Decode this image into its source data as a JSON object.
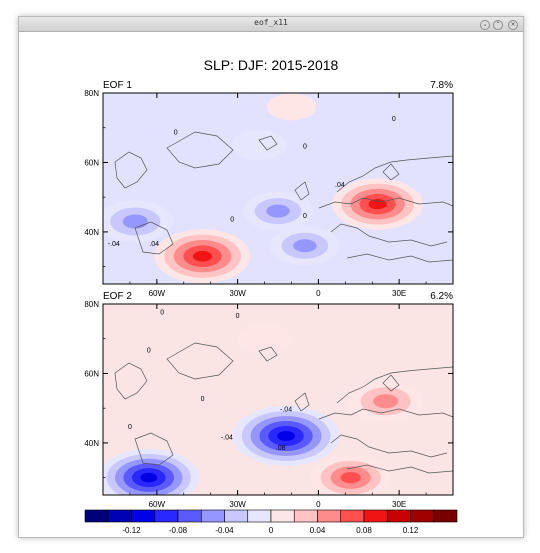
{
  "window": {
    "title": "eof_x11",
    "buttons": [
      {
        "name": "minimize-button",
        "glyph": "⌄"
      },
      {
        "name": "maximize-button",
        "glyph": "⌃"
      },
      {
        "name": "close-button",
        "glyph": "×"
      }
    ]
  },
  "figure": {
    "title": "SLP: DJF: 2015-2018"
  },
  "chart_data": [
    {
      "type": "heatmap",
      "title": "EOF 1",
      "variance_label": "7.8%",
      "xlim": [
        -80,
        50
      ],
      "ylim": [
        25,
        80
      ],
      "x_ticks": [
        {
          "value": -60,
          "label": "60W"
        },
        {
          "value": -30,
          "label": "30W"
        },
        {
          "value": 0,
          "label": "0"
        },
        {
          "value": 30,
          "label": "30E"
        }
      ],
      "y_ticks": [
        {
          "value": 40,
          "label": "40N"
        },
        {
          "value": 60,
          "label": "60N"
        },
        {
          "value": 80,
          "label": "80N"
        }
      ],
      "contour_labels": [
        {
          "lon": -53,
          "lat": 68,
          "text": "0"
        },
        {
          "lon": -5,
          "lat": 64,
          "text": "0"
        },
        {
          "lon": 28,
          "lat": 72,
          "text": "0"
        },
        {
          "lon": -32,
          "lat": 43,
          "text": "0"
        },
        {
          "lon": -5,
          "lat": 44,
          "text": "0"
        },
        {
          "lon": -76,
          "lat": 36,
          "text": "-.04"
        },
        {
          "lon": -61,
          "lat": 36,
          "text": ".04"
        },
        {
          "lon": 8,
          "lat": 53,
          "text": ".04"
        }
      ],
      "anomalies": [
        {
          "lon": -43,
          "lat": 33,
          "value": 0.1
        },
        {
          "lon": 22,
          "lat": 48,
          "value": 0.09
        },
        {
          "lon": -68,
          "lat": 43,
          "value": -0.06
        },
        {
          "lon": -15,
          "lat": 46,
          "value": -0.05
        },
        {
          "lon": -5,
          "lat": 36,
          "value": -0.05
        },
        {
          "lon": -22,
          "lat": 65,
          "value": -0.02
        },
        {
          "lon": -10,
          "lat": 76,
          "value": 0.01
        }
      ]
    },
    {
      "type": "heatmap",
      "title": "EOF 2",
      "variance_label": "6.2%",
      "xlim": [
        -80,
        50
      ],
      "ylim": [
        25,
        80
      ],
      "x_ticks": [
        {
          "value": -60,
          "label": "60W"
        },
        {
          "value": -30,
          "label": "30W"
        },
        {
          "value": 0,
          "label": "0"
        },
        {
          "value": 30,
          "label": "30E"
        }
      ],
      "y_ticks": [
        {
          "value": 40,
          "label": "40N"
        },
        {
          "value": 60,
          "label": "60N"
        },
        {
          "value": 80,
          "label": "80N"
        }
      ],
      "contour_labels": [
        {
          "lon": -58,
          "lat": 77,
          "text": "0"
        },
        {
          "lon": -30,
          "lat": 76,
          "text": "0"
        },
        {
          "lon": -63,
          "lat": 66,
          "text": "0"
        },
        {
          "lon": -43,
          "lat": 52,
          "text": "0"
        },
        {
          "lon": -70,
          "lat": 44,
          "text": "0"
        },
        {
          "lon": -12,
          "lat": 49,
          "text": "-.04"
        },
        {
          "lon": -34,
          "lat": 41,
          "text": "-.04"
        },
        {
          "lon": -14,
          "lat": 38,
          "text": ".08"
        }
      ],
      "anomalies": [
        {
          "lon": -12,
          "lat": 42,
          "value": -0.12
        },
        {
          "lon": -63,
          "lat": 30,
          "value": -0.11
        },
        {
          "lon": 25,
          "lat": 52,
          "value": 0.06
        },
        {
          "lon": 12,
          "lat": 30,
          "value": 0.07
        },
        {
          "lon": -20,
          "lat": 70,
          "value": 0.02
        }
      ]
    }
  ],
  "colorbar": {
    "levels": [
      -0.16,
      -0.14,
      -0.12,
      -0.1,
      -0.08,
      -0.06,
      -0.04,
      -0.02,
      0,
      0.02,
      0.04,
      0.06,
      0.08,
      0.1,
      0.12,
      0.14,
      0.16
    ],
    "colors": [
      "#00007a",
      "#0000b4",
      "#0000e6",
      "#2828ff",
      "#5a5aff",
      "#9696ff",
      "#c8c8ff",
      "#e6e6ff",
      "#ffe6e6",
      "#ffc3c3",
      "#ff8c8c",
      "#ff5050",
      "#f01414",
      "#c80000",
      "#a00000",
      "#780000"
    ],
    "tick_labels": [
      {
        "value": -0.12,
        "label": "-0.12"
      },
      {
        "value": -0.08,
        "label": "-0.08"
      },
      {
        "value": -0.04,
        "label": "-0.04"
      },
      {
        "value": 0,
        "label": "0"
      },
      {
        "value": 0.04,
        "label": "0.04"
      },
      {
        "value": 0.08,
        "label": "0.08"
      },
      {
        "value": 0.12,
        "label": "0.12"
      }
    ]
  }
}
